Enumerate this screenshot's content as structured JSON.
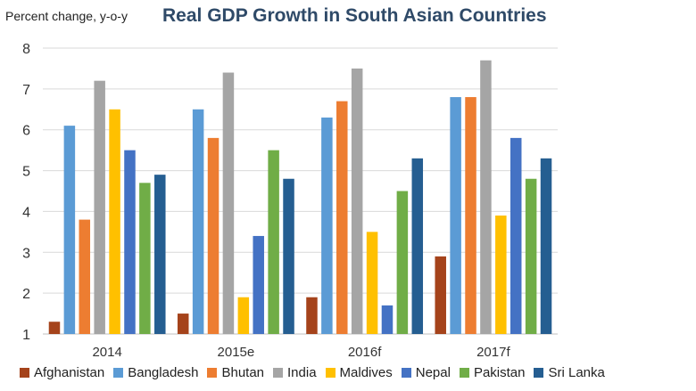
{
  "chart_data": {
    "type": "bar",
    "title": "Real GDP Growth in South Asian Countries",
    "ylabel": "Percent change, y-o-y",
    "xlabel": "",
    "ylim": [
      1,
      8
    ],
    "yticks": [
      1,
      2,
      3,
      4,
      5,
      6,
      7,
      8
    ],
    "grid": true,
    "legend_position": "bottom",
    "categories": [
      "2014",
      "2015e",
      "2016f",
      "2017f"
    ],
    "series": [
      {
        "name": "Afghanistan",
        "color": "#a5431b",
        "values": [
          1.3,
          1.5,
          1.9,
          2.9
        ]
      },
      {
        "name": "Bangladesh",
        "color": "#5b9bd5",
        "values": [
          6.1,
          6.5,
          6.3,
          6.8
        ]
      },
      {
        "name": "Bhutan",
        "color": "#ed7d31",
        "values": [
          3.8,
          5.8,
          6.7,
          6.8
        ]
      },
      {
        "name": "India",
        "color": "#a5a5a5",
        "values": [
          7.2,
          7.4,
          7.5,
          7.7
        ]
      },
      {
        "name": "Maldives",
        "color": "#ffc000",
        "values": [
          6.5,
          1.9,
          3.5,
          3.9
        ]
      },
      {
        "name": "Nepal",
        "color": "#4472c4",
        "values": [
          5.5,
          3.4,
          1.7,
          5.8
        ]
      },
      {
        "name": "Pakistan",
        "color": "#70ad47",
        "values": [
          4.7,
          5.5,
          4.5,
          4.8
        ]
      },
      {
        "name": "Sri Lanka",
        "color": "#255e91",
        "values": [
          4.9,
          4.8,
          5.3,
          5.3
        ]
      }
    ]
  }
}
